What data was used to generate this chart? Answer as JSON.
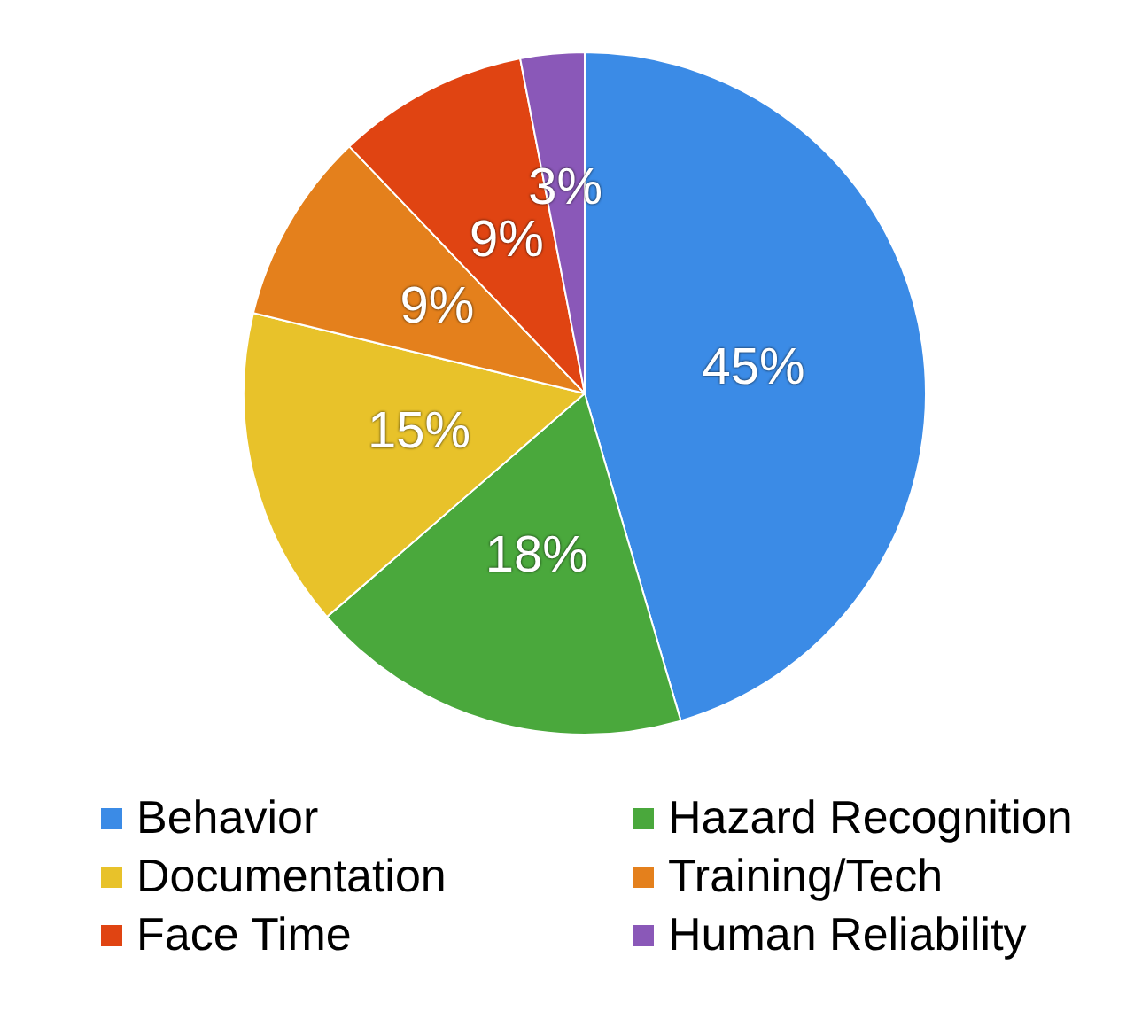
{
  "chart_data": {
    "type": "pie",
    "categories": [
      "Behavior",
      "Hazard Recognition",
      "Documentation",
      "Training/Tech",
      "Face Time",
      "Human Reliability"
    ],
    "values": [
      45,
      18,
      15,
      9,
      9,
      3
    ],
    "colors": [
      "#3b8be6",
      "#4aa83c",
      "#e8c22a",
      "#e4801c",
      "#e04412",
      "#8a58b8"
    ],
    "value_labels": [
      "45%",
      "18%",
      "15%",
      "9%",
      "9%",
      "3%"
    ],
    "legend": "bottom"
  }
}
